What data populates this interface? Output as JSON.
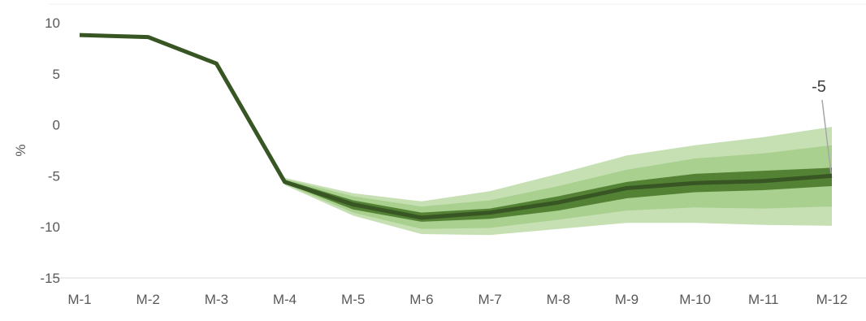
{
  "chart_data": {
    "type": "area",
    "title": "",
    "xlabel": "",
    "ylabel": "%",
    "ylim": [
      -15,
      10
    ],
    "yticks": [
      10,
      5,
      0,
      -5,
      -10,
      -15
    ],
    "ytick_labels": [
      "10",
      "5",
      "0",
      "-5",
      "-10",
      "-15"
    ],
    "categories": [
      "M-1",
      "M-2",
      "M-3",
      "M-4",
      "M-5",
      "M-6",
      "M-7",
      "M-8",
      "M-9",
      "M-10",
      "M-11",
      "M-12"
    ],
    "grid": false,
    "legend": "none",
    "series": [
      {
        "values": [
          8.8,
          8.6,
          6.0,
          -5.6,
          -7.8,
          -9.1,
          -8.6,
          -7.6,
          -6.2,
          -5.7,
          -5.5,
          -5.0
        ]
      }
    ],
    "fan_bands": {
      "start_index": 3,
      "outer_upper": [
        -5.2,
        -6.7,
        -7.5,
        -6.5,
        -4.8,
        -3.0,
        -2.0,
        -1.2,
        -0.2
      ],
      "outer_lower": [
        -5.9,
        -8.9,
        -10.7,
        -10.8,
        -10.2,
        -9.6,
        -9.6,
        -9.8,
        -9.9
      ],
      "middle_upper": [
        -5.3,
        -7.0,
        -8.0,
        -7.4,
        -6.0,
        -4.4,
        -3.3,
        -2.8,
        -2.0
      ],
      "middle_lower": [
        -5.8,
        -8.6,
        -10.2,
        -10.1,
        -9.3,
        -8.4,
        -8.1,
        -8.2,
        -8.0
      ],
      "inner_upper": [
        -5.4,
        -7.4,
        -8.6,
        -8.2,
        -7.0,
        -5.6,
        -4.8,
        -4.5,
        -4.2
      ],
      "inner_lower": [
        -5.7,
        -8.3,
        -9.5,
        -9.2,
        -8.4,
        -7.2,
        -6.6,
        -6.4,
        -6.0
      ]
    },
    "annotation": {
      "text": "-5",
      "category": "M-12",
      "value": -5.0
    },
    "colors": {
      "line": "#375623",
      "outer_band": "#c6e0b4",
      "middle_band": "#a9d08e",
      "inner_band": "#548235",
      "axis": "#d9d9d9",
      "text": "#595959",
      "leader": "#a6a6a6"
    }
  }
}
